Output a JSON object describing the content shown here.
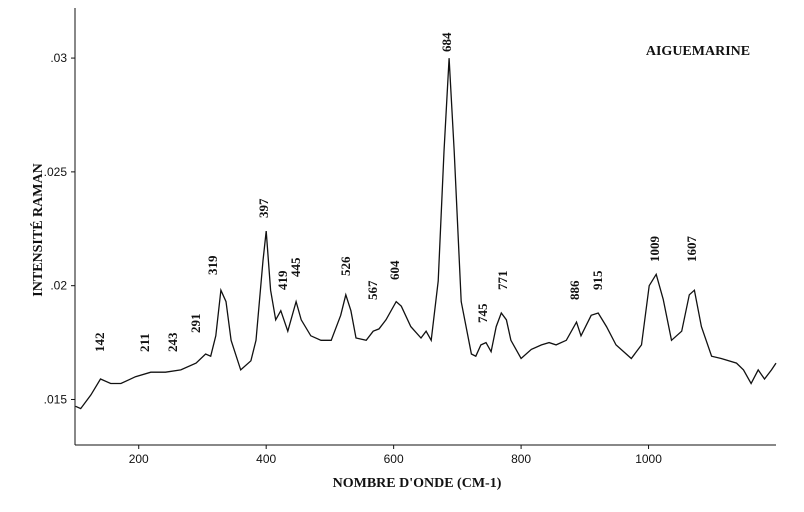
{
  "chart_data": {
    "type": "line",
    "title": "AIGUEMARINE",
    "x_label": "NOMBRE D'ONDE (CM-1)",
    "y_label": "INTENSITÉ RAMAN",
    "color": "#111111",
    "xlim": [
      100,
      1200
    ],
    "ylim": [
      0.013,
      0.0322
    ],
    "xticks": [
      200,
      400,
      600,
      800,
      1000
    ],
    "yticks": [
      {
        "value": 0.015,
        "label": ".015"
      },
      {
        "value": 0.02,
        "label": ".02"
      },
      {
        "value": 0.025,
        "label": ".025"
      },
      {
        "value": 0.03,
        "label": ".03"
      }
    ],
    "x": [
      101,
      109,
      125,
      140,
      156,
      172,
      195,
      219,
      242,
      266,
      290,
      305,
      313,
      321,
      329,
      337,
      345,
      360,
      376,
      384,
      395,
      400,
      407,
      415,
      423,
      434,
      447,
      455,
      470,
      486,
      502,
      517,
      525,
      533,
      541,
      557,
      568,
      577,
      588,
      604,
      612,
      627,
      643,
      651,
      659,
      670,
      679,
      687,
      695,
      706,
      722,
      729,
      737,
      745,
      753,
      761,
      769,
      777,
      784,
      800,
      816,
      832,
      844,
      855,
      871,
      887,
      894,
      910,
      921,
      934,
      949,
      973,
      989,
      1001,
      1012,
      1023,
      1036,
      1052,
      1064,
      1072,
      1083,
      1099,
      1114,
      1138,
      1149,
      1161,
      1172,
      1182,
      1193,
      1200
    ],
    "values": [
      0.0147,
      0.0146,
      0.0152,
      0.0159,
      0.0157,
      0.0157,
      0.016,
      0.0162,
      0.0162,
      0.0163,
      0.0166,
      0.017,
      0.0169,
      0.0178,
      0.0198,
      0.0193,
      0.0176,
      0.0163,
      0.0167,
      0.0176,
      0.0211,
      0.0224,
      0.0198,
      0.0185,
      0.0189,
      0.018,
      0.0193,
      0.0185,
      0.0178,
      0.0176,
      0.0176,
      0.0187,
      0.0196,
      0.0189,
      0.0177,
      0.0176,
      0.018,
      0.0181,
      0.0185,
      0.0193,
      0.0191,
      0.0182,
      0.0177,
      0.018,
      0.0176,
      0.0202,
      0.0259,
      0.03,
      0.0259,
      0.0193,
      0.017,
      0.0169,
      0.0174,
      0.0175,
      0.0171,
      0.0182,
      0.0188,
      0.0185,
      0.0176,
      0.0168,
      0.0172,
      0.0174,
      0.0175,
      0.0174,
      0.0176,
      0.0184,
      0.0178,
      0.0187,
      0.0188,
      0.0182,
      0.0174,
      0.0168,
      0.0174,
      0.02,
      0.0205,
      0.0194,
      0.0176,
      0.018,
      0.0196,
      0.0198,
      0.0182,
      0.0169,
      0.0168,
      0.0166,
      0.0163,
      0.0157,
      0.0163,
      0.0159,
      0.0163,
      0.0166
    ],
    "annotations": [
      "142",
      "211",
      "243",
      "291",
      "319",
      "397",
      "419",
      "445",
      "526",
      "567",
      "604",
      "684",
      "745",
      "771",
      "886",
      "915",
      "1009",
      "1607"
    ]
  }
}
